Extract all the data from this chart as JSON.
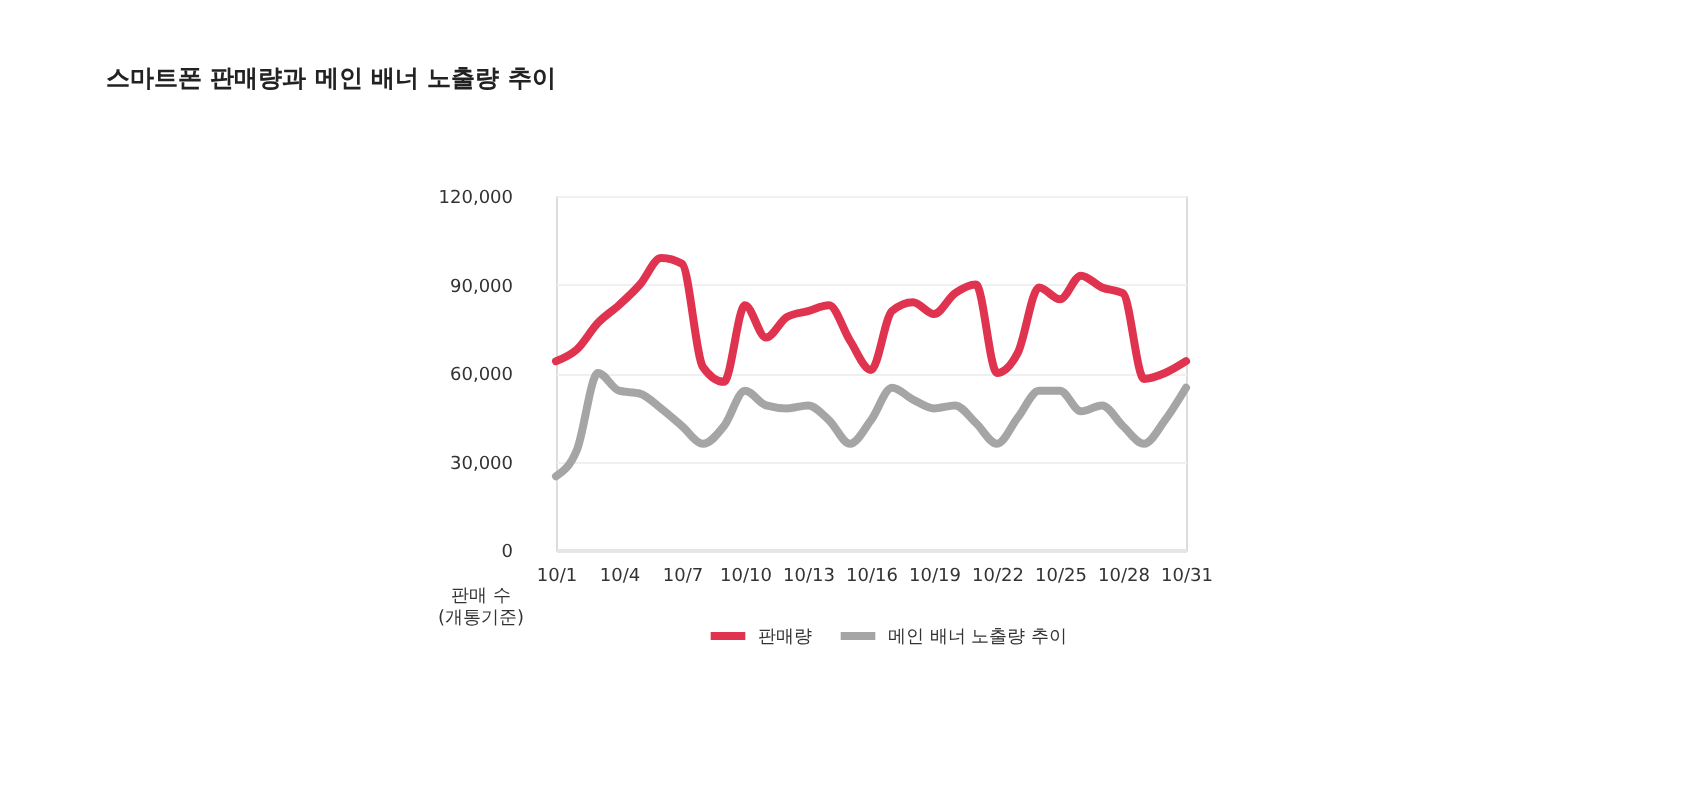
{
  "chart_data": {
    "type": "line",
    "title": "스마트폰 판매량과 메인 배너 노출량 추이",
    "ylabel": "판매 수\n(개통기준)",
    "categories": [
      "10/1",
      null,
      null,
      "10/4",
      null,
      null,
      "10/7",
      null,
      null,
      "10/10",
      null,
      null,
      "10/13",
      null,
      null,
      "10/16",
      null,
      null,
      "10/19",
      null,
      null,
      "10/22",
      null,
      null,
      "10/25",
      null,
      null,
      "10/28",
      null,
      null,
      "10/31"
    ],
    "series": [
      {
        "name": "판매량",
        "color": "#e0334f",
        "values": [
          64000,
          68000,
          77000,
          83000,
          90000,
          99000,
          97000,
          62000,
          57000,
          83000,
          72000,
          79000,
          81000,
          83000,
          71000,
          61000,
          81000,
          84000,
          80000,
          87000,
          90000,
          60000,
          67000,
          89000,
          85000,
          93000,
          89000,
          87000,
          58000,
          60000,
          64000
        ]
      },
      {
        "name": "메인 배너 노출량 추이",
        "color": "#a5a5a5",
        "values": [
          25000,
          34000,
          60000,
          54000,
          53000,
          48000,
          42000,
          36000,
          42000,
          54000,
          49000,
          48000,
          49000,
          44000,
          36000,
          44000,
          55000,
          51000,
          48000,
          49000,
          43000,
          36000,
          45000,
          54000,
          54000,
          47000,
          49000,
          42000,
          36000,
          44000,
          55000
        ]
      }
    ],
    "ylim": [
      0,
      120000
    ],
    "yticks": [
      0,
      {
        "value": 30000,
        "label": "30,000"
      },
      {
        "value": 60000,
        "label": "60,000"
      },
      {
        "value": 90000,
        "label": "90,000"
      },
      {
        "value": 120000,
        "label": "120,000"
      }
    ],
    "grid": "y",
    "legend": "bottom"
  }
}
